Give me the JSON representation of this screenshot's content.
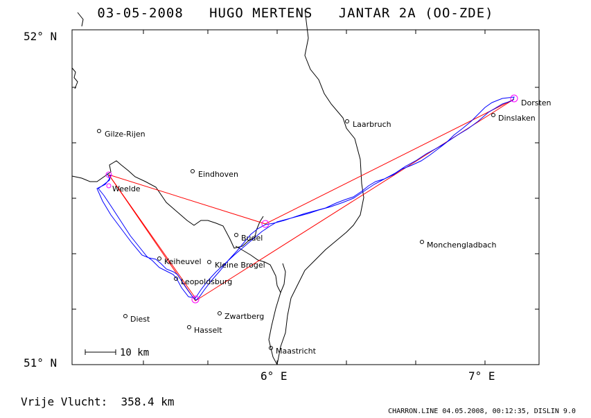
{
  "title": {
    "date": "03-05-2008",
    "pilot": "HUGO MERTENS",
    "glider": "JANTAR 2A (OO-ZDE)"
  },
  "axes": {
    "lat_top": "52° N",
    "lat_bottom": "51° N",
    "lon_6": "6° E",
    "lon_7": "7° E"
  },
  "scale": {
    "label": "10 km"
  },
  "places": [
    {
      "id": "gilze-rijen",
      "name": "Gilze-Rijen"
    },
    {
      "id": "eindhoven",
      "name": "Eindhoven"
    },
    {
      "id": "weelde",
      "name": "Weelde"
    },
    {
      "id": "laarbruch",
      "name": "Laarbruch"
    },
    {
      "id": "dorsten",
      "name": "Dorsten"
    },
    {
      "id": "dinslaken",
      "name": "Dinslaken"
    },
    {
      "id": "budel",
      "name": "Budel"
    },
    {
      "id": "monchengladbach",
      "name": "Monchengladbach"
    },
    {
      "id": "keiheuvel",
      "name": "Keiheuvel"
    },
    {
      "id": "kleine-brogel",
      "name": "Kleine Brogel"
    },
    {
      "id": "leopoldsburg",
      "name": "Leopoldsburg"
    },
    {
      "id": "diest",
      "name": "Diest"
    },
    {
      "id": "zwartberg",
      "name": "Zwartberg"
    },
    {
      "id": "hasselt",
      "name": "Hasselt"
    },
    {
      "id": "maastricht",
      "name": "Maastricht"
    }
  ],
  "colors": {
    "track": "#0000ff",
    "task": "#ff0000",
    "turnpoint": "#ff00ff",
    "border": "#000000"
  },
  "footer": {
    "distance_label": "Vrije Vlucht:",
    "distance_value": "358.4 km",
    "credit": "CHARRON.LINE 04.05.2008, 00:12:35, DISLIN 9.0"
  }
}
